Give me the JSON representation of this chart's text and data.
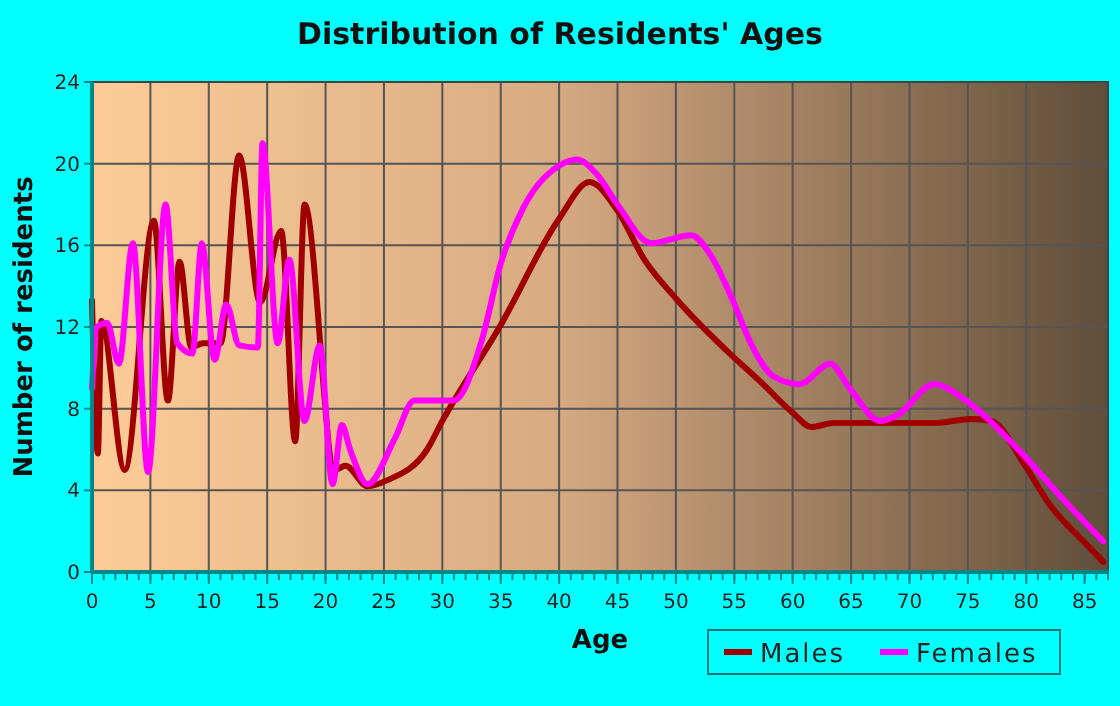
{
  "chart_data": {
    "type": "line",
    "title": "Distribution of Residents' Ages",
    "xlabel": "Age",
    "ylabel": "Number of residents",
    "xlim": [
      0,
      87
    ],
    "ylim": [
      0,
      24
    ],
    "xticks": [
      0,
      5,
      10,
      15,
      20,
      25,
      30,
      35,
      40,
      45,
      50,
      55,
      60,
      65,
      70,
      75,
      80,
      85
    ],
    "yticks": [
      0,
      4,
      8,
      12,
      16,
      20,
      24
    ],
    "grid": true,
    "legend": "bottom",
    "marker": "none",
    "line_style": "solid",
    "series": [
      {
        "name": "Males",
        "color": "#a00000",
        "x": [
          0,
          0.5,
          0.8,
          2.8,
          5.3,
          6.5,
          7.5,
          8.5,
          9.5,
          11,
          12.6,
          14.4,
          16.2,
          17.4,
          18.2,
          20.8,
          21.7,
          23.6,
          25.3,
          28.7,
          30,
          35,
          40,
          42.6,
          45,
          47.3,
          50,
          54.8,
          57.1,
          60,
          61.6,
          63.5,
          72.1,
          75.3,
          77,
          79.8,
          82,
          84.9,
          86.6
        ],
        "values": [
          13.3,
          5.8,
          12.3,
          5,
          17.2,
          8.4,
          15.2,
          11,
          11.2,
          11.2,
          20.4,
          13.2,
          16.7,
          6.4,
          18,
          5,
          5.2,
          4.2,
          4.5,
          6,
          7.4,
          12.1,
          17.3,
          19.1,
          17.7,
          15.3,
          13.4,
          10.6,
          9.4,
          7.8,
          7.1,
          7.3,
          7.3,
          7.5,
          7.4,
          5.3,
          3.3,
          1.5,
          0.5
        ]
      },
      {
        "name": "Females",
        "color": "#ff00ff",
        "x": [
          0,
          0.4,
          1.3,
          2.3,
          3.5,
          4.8,
          6.3,
          7.3,
          8.6,
          9.4,
          10.5,
          11.5,
          12.6,
          14.2,
          14.6,
          15.9,
          16.9,
          18.2,
          19.5,
          20.6,
          21.4,
          22.1,
          23.6,
          25.9,
          27.6,
          31,
          33.4,
          35,
          36.9,
          40,
          41.5,
          43.2,
          45,
          47.9,
          51.3,
          53,
          54.8,
          56.5,
          58.3,
          60.6,
          63.2,
          65,
          67.5,
          69,
          72.1,
          74.6,
          76.7,
          79.8,
          83.1,
          86.6
        ],
        "values": [
          9,
          12,
          12.2,
          10.2,
          16.1,
          4.9,
          18,
          11.2,
          10.7,
          16.1,
          10.4,
          13.1,
          11.1,
          11,
          21,
          11.2,
          15.3,
          7.4,
          11.1,
          4.3,
          7.2,
          6,
          4.3,
          6.5,
          8.4,
          8.4,
          11.4,
          15.1,
          17.8,
          19.9,
          20.2,
          19.5,
          18,
          16.1,
          16.5,
          15.5,
          13.4,
          11.1,
          9.6,
          9.2,
          10.2,
          8.9,
          7.4,
          7.7,
          9.2,
          8.5,
          7.5,
          5.7,
          3.6,
          1.5
        ]
      }
    ]
  }
}
